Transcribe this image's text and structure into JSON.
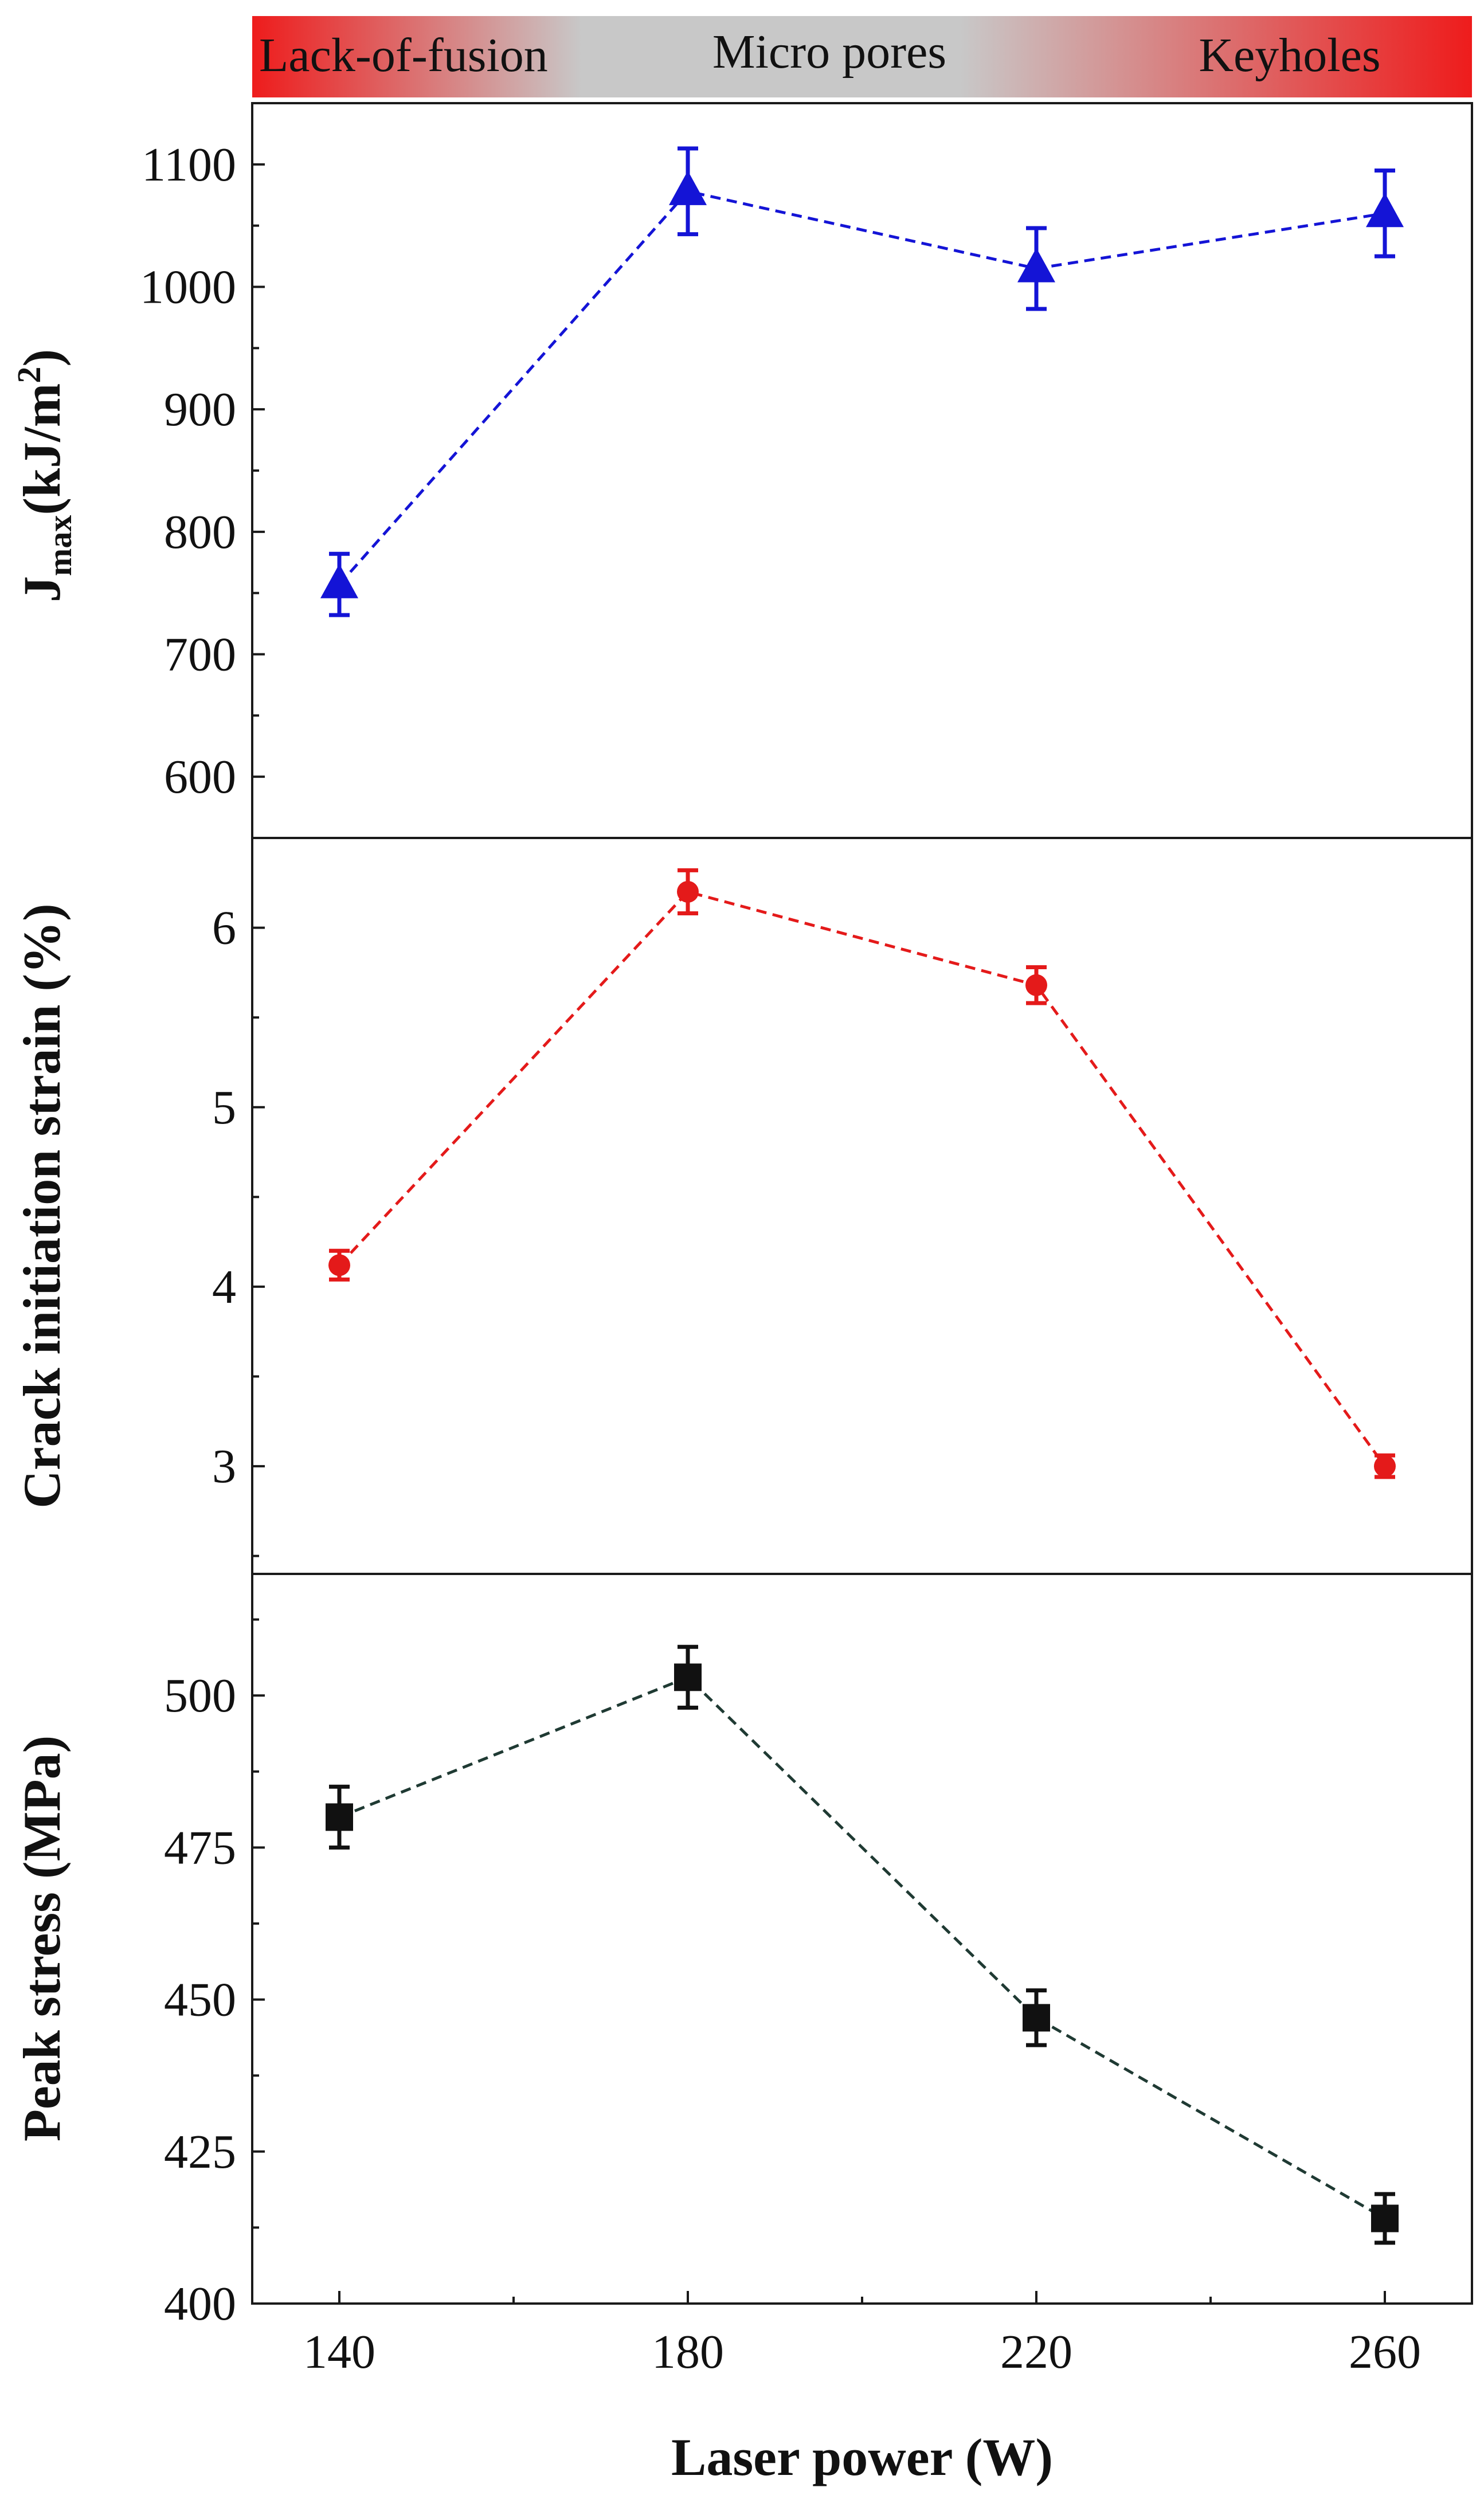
{
  "chart_data": {
    "type": "line",
    "x": [
      140,
      180,
      220,
      260
    ],
    "x_ticks": [
      "140",
      "180",
      "220",
      "260"
    ],
    "xlabel": "Laser power (W)",
    "xlim": [
      130,
      270
    ],
    "regimes": [
      {
        "label": "Lack-of-fusion",
        "color": "#ee1c1c"
      },
      {
        "label": "Micro pores",
        "color": "#c8c8c8"
      },
      {
        "label": "Keyholes",
        "color": "#ee1c1c"
      }
    ],
    "panels": [
      {
        "name": "jmax",
        "ylabel_main": "J",
        "ylabel_sub": "max",
        "ylabel_units": "(kJ/m",
        "ylabel_sup": "2",
        "ylabel_close": ")",
        "ylabel_full": "Jmax (kJ/m2)",
        "ylim": [
          550,
          1150
        ],
        "y_ticks": [
          "600",
          "700",
          "800",
          "900",
          "1000",
          "1100"
        ],
        "y_tick_values": [
          600,
          700,
          800,
          900,
          1000,
          1100
        ],
        "marker": "triangle",
        "color": "#1414d6",
        "values": [
          757,
          1078,
          1015,
          1060
        ],
        "errors": [
          25,
          35,
          33,
          35
        ]
      },
      {
        "name": "crack-strain",
        "ylabel_full": "Crack initiation strain (%)",
        "ylim": [
          2.4,
          6.5
        ],
        "y_ticks": [
          "3",
          "4",
          "5",
          "6"
        ],
        "y_tick_values": [
          3,
          4,
          5,
          6
        ],
        "marker": "circle",
        "color": "#e41a1a",
        "values": [
          4.12,
          6.2,
          5.68,
          3.0
        ],
        "errors": [
          0.08,
          0.12,
          0.1,
          0.06
        ]
      },
      {
        "name": "peak-stress",
        "ylabel_full": "Peak stress (MPa)",
        "ylim": [
          400,
          520
        ],
        "y_ticks": [
          "400",
          "425",
          "450",
          "475",
          "500"
        ],
        "y_tick_values": [
          400,
          425,
          450,
          475,
          500
        ],
        "marker": "square",
        "color": "#111111",
        "line_color": "#1f3a33",
        "values": [
          480,
          503,
          447,
          414
        ],
        "errors": [
          5,
          5,
          4.5,
          4
        ]
      }
    ]
  }
}
